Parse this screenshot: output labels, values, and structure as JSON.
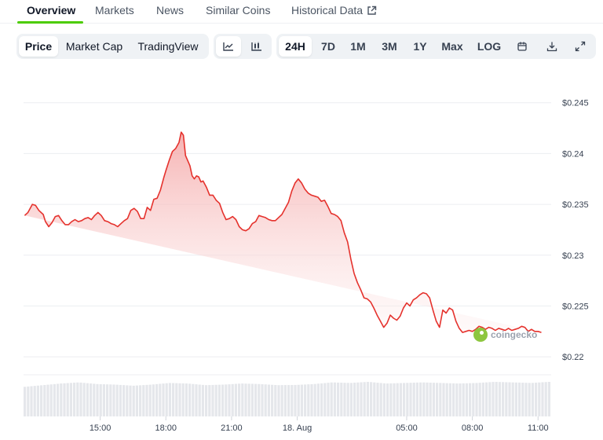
{
  "nav": {
    "tabs": [
      {
        "label": "Overview",
        "active": true
      },
      {
        "label": "Markets"
      },
      {
        "label": "News"
      },
      {
        "label": "Similar Coins"
      },
      {
        "label": "Historical Data",
        "icon": "external-link-icon"
      }
    ],
    "accent": "#4bcc00"
  },
  "toolbar": {
    "chart_kind": [
      "Price",
      "Market Cap",
      "TradingView"
    ],
    "chart_kind_active": "Price",
    "style_icons": [
      "line-chart-icon",
      "candlestick-chart-icon"
    ],
    "ranges": [
      "24H",
      "7D",
      "1M",
      "3M",
      "1Y",
      "Max",
      "LOG"
    ],
    "range_active": "24H",
    "action_icons": [
      "calendar-icon",
      "download-icon",
      "fullscreen-icon"
    ]
  },
  "watermark": "coingecko",
  "colors": {
    "line": "#e5322d",
    "fill": "#f8caca",
    "volume": "#e5e7eb"
  },
  "chart_data": {
    "type": "area",
    "y_tick_labels": [
      "$0.245",
      "$0.24",
      "$0.235",
      "$0.23",
      "$0.225",
      "$0.22"
    ],
    "y_ticks": [
      0.245,
      0.24,
      0.235,
      0.23,
      0.225,
      0.22
    ],
    "ylim": [
      0.2197,
      0.2466
    ],
    "x_tick_labels": [
      "15:00",
      "18:00",
      "21:00",
      "18. Aug",
      "05:00",
      "08:00",
      "11:00"
    ],
    "x_tick_hours": [
      3,
      6,
      9,
      12,
      17,
      20,
      23
    ],
    "xlim_hours": [
      -0.5,
      23.6
    ],
    "grid": true,
    "legend": "none",
    "series": [
      {
        "values_x_hours": [
          -0.45,
          -0.3,
          -0.1,
          0.05,
          0.2,
          0.4,
          0.5,
          0.65,
          0.8,
          0.95,
          1.1,
          1.25,
          1.4,
          1.55,
          1.7,
          1.85,
          2.0,
          2.15,
          2.3,
          2.45,
          2.6,
          2.75,
          2.9,
          3.05,
          3.2,
          3.35,
          3.5,
          3.65,
          3.8,
          3.95,
          4.1,
          4.25,
          4.4,
          4.55,
          4.7,
          4.85,
          5.0,
          5.15,
          5.3,
          5.45,
          5.6,
          5.75,
          5.9,
          6.0,
          6.15,
          6.3,
          6.45,
          6.6,
          6.7,
          6.8,
          6.9,
          7.0,
          7.1,
          7.2,
          7.3,
          7.4,
          7.5,
          7.6,
          7.7,
          7.85,
          8.0,
          8.15,
          8.3,
          8.45,
          8.6,
          8.75,
          8.9,
          9.05,
          9.2,
          9.35,
          9.5,
          9.65,
          9.8,
          9.95,
          10.1,
          10.25,
          10.4,
          10.55,
          10.7,
          10.85,
          11.0,
          11.15,
          11.3,
          11.45,
          11.6,
          11.75,
          11.9,
          12.05,
          12.2,
          12.35,
          12.5,
          12.65,
          12.8,
          12.95,
          13.1,
          13.25,
          13.4,
          13.55,
          13.7,
          13.85,
          14.0,
          14.15,
          14.3,
          14.45,
          14.6,
          14.75,
          14.9,
          15.05,
          15.2,
          15.35,
          15.5,
          15.65,
          15.8,
          15.95,
          16.1,
          16.25,
          16.4,
          16.55,
          16.7,
          16.85,
          17.0,
          17.15,
          17.3,
          17.45,
          17.6,
          17.75,
          17.9,
          18.05,
          18.2,
          18.35,
          18.5,
          18.65,
          18.8,
          18.95,
          19.1,
          19.25,
          19.4,
          19.55,
          19.7,
          19.85,
          20.0,
          20.15,
          20.3,
          20.45,
          20.6,
          20.75,
          20.9,
          21.05,
          21.2,
          21.35,
          21.5,
          21.65,
          21.8,
          21.95,
          22.1,
          22.25,
          22.4,
          22.55,
          22.7,
          22.85,
          23.0,
          23.15,
          23.3,
          23.45,
          23.55
        ],
        "values": [
          0.2339,
          0.2342,
          0.235,
          0.2349,
          0.2344,
          0.234,
          0.2333,
          0.2328,
          0.2332,
          0.2338,
          0.2339,
          0.2334,
          0.233,
          0.233,
          0.2333,
          0.2335,
          0.2333,
          0.2334,
          0.2336,
          0.2337,
          0.2335,
          0.2339,
          0.2342,
          0.2339,
          0.2334,
          0.2333,
          0.2331,
          0.233,
          0.2328,
          0.2331,
          0.2334,
          0.2336,
          0.2344,
          0.2346,
          0.2343,
          0.2336,
          0.2336,
          0.2347,
          0.2344,
          0.2355,
          0.2356,
          0.2364,
          0.2376,
          0.2383,
          0.2393,
          0.2402,
          0.2405,
          0.2411,
          0.2421,
          0.2418,
          0.2398,
          0.2393,
          0.2388,
          0.2378,
          0.2375,
          0.2378,
          0.2377,
          0.2372,
          0.2373,
          0.2367,
          0.2359,
          0.2359,
          0.2354,
          0.2351,
          0.2342,
          0.2335,
          0.2336,
          0.2338,
          0.2335,
          0.2328,
          0.2325,
          0.2324,
          0.2326,
          0.2331,
          0.2333,
          0.2339,
          0.2338,
          0.2337,
          0.2335,
          0.2334,
          0.2334,
          0.2337,
          0.234,
          0.2346,
          0.2352,
          0.2363,
          0.2371,
          0.2375,
          0.2371,
          0.2365,
          0.2361,
          0.2359,
          0.2358,
          0.2357,
          0.2353,
          0.2354,
          0.2348,
          0.2341,
          0.234,
          0.2338,
          0.2334,
          0.2322,
          0.2313,
          0.2296,
          0.2282,
          0.2273,
          0.2266,
          0.2258,
          0.2257,
          0.2254,
          0.2248,
          0.2241,
          0.2235,
          0.2229,
          0.2233,
          0.2241,
          0.2238,
          0.2236,
          0.224,
          0.2248,
          0.2253,
          0.225,
          0.2256,
          0.2258,
          0.2261,
          0.2263,
          0.2262,
          0.2258,
          0.2246,
          0.2235,
          0.2229,
          0.2246,
          0.2243,
          0.2248,
          0.2246,
          0.2235,
          0.2228,
          0.2224,
          0.2225,
          0.2226,
          0.2225,
          0.2227,
          0.223,
          0.2229,
          0.2227,
          0.2229,
          0.2228,
          0.2226,
          0.2228,
          0.2227,
          0.2226,
          0.2228,
          0.2226,
          0.2227,
          0.2228,
          0.223,
          0.2229,
          0.2225,
          0.2227,
          0.2225,
          0.2225,
          0.2224
        ]
      }
    ],
    "volume_levels": [
      0.55,
      0.7,
      0.85,
      0.95,
      0.8,
      0.75,
      0.65,
      0.75,
      0.9,
      0.85,
      0.7,
      0.75,
      0.85,
      0.8,
      0.7,
      0.72,
      0.8,
      0.95,
      0.9,
      1.0,
      0.85,
      0.9,
      0.95,
      0.9,
      0.85,
      0.9,
      1.0,
      0.95,
      0.9,
      1.0
    ]
  }
}
